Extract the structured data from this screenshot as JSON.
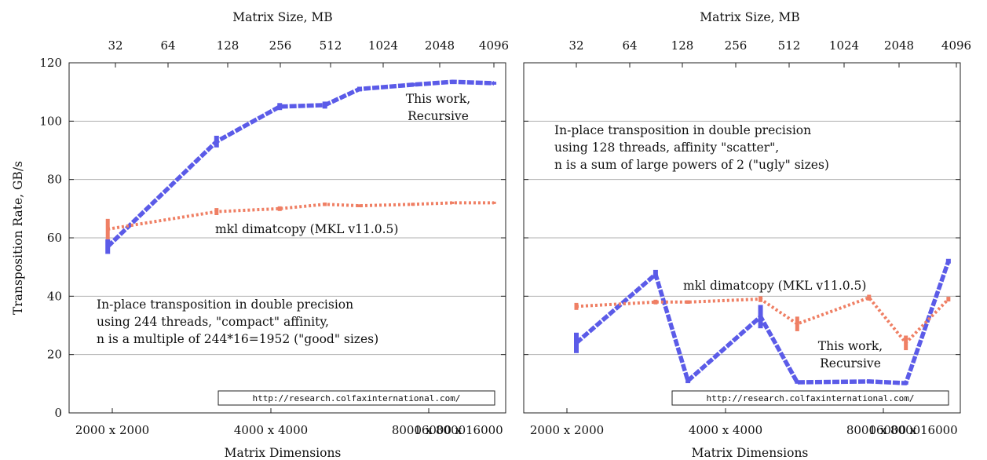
{
  "colors": {
    "blue": "#5b5be8",
    "orange": "#ef7f64",
    "grid": "#b0b0b0",
    "note_text": "#7a2e2e"
  },
  "figure": {
    "top_axis_title": "Matrix Size, MB",
    "bottom_axis_title": "Matrix Dimensions",
    "y_axis_title": "Transposition Rate, GB/s"
  },
  "chart_data": [
    {
      "type": "line",
      "xlabel": "Matrix Dimensions",
      "x2label": "Matrix Size, MB",
      "ylabel": "Transposition Rate, GB/s",
      "ylim": [
        0,
        120
      ],
      "yticks": [
        0,
        20,
        40,
        60,
        80,
        100,
        120
      ],
      "xticks_bottom": [
        "2000 x 2000",
        "4000 x 4000",
        "8000 x 8000",
        "16000 x 16000"
      ],
      "xticks_top": [
        "32",
        "64",
        "128",
        "256",
        "512",
        "1024",
        "2048",
        "4096"
      ],
      "grid": true,
      "annotation": [
        "In-place transposition in double precision",
        "using 244 threads, \"compact\" affinity,",
        "n is a multiple of 244*16=1952 (\"good\" sizes)"
      ],
      "url": "http://research.colfaxinternational.com/",
      "series": [
        {
          "name": "This work, Recursive",
          "label_lines": [
            "This work,",
            "Recursive"
          ],
          "color": "#5b5be8",
          "style": "dashed",
          "points": [
            {
              "matrix_size_mb": 29,
              "rate_gbs": 57,
              "err": 2.5
            },
            {
              "matrix_size_mb": 117,
              "rate_gbs": 93,
              "err": 2
            },
            {
              "matrix_size_mb": 263,
              "rate_gbs": 105,
              "err": 1.2
            },
            {
              "matrix_size_mb": 469,
              "rate_gbs": 105.5,
              "err": 1.2
            },
            {
              "matrix_size_mb": 732,
              "rate_gbs": 111,
              "err": 0.8
            },
            {
              "matrix_size_mb": 1450,
              "rate_gbs": 112.5,
              "err": 0.6
            },
            {
              "matrix_size_mb": 2400,
              "rate_gbs": 113.5,
              "err": 0.5
            },
            {
              "matrix_size_mb": 4100,
              "rate_gbs": 113,
              "err": 0.5
            }
          ]
        },
        {
          "name": "mkl dimatcopy (MKL v11.0.5)",
          "label_lines": [
            "mkl dimatcopy (MKL v11.0.5)"
          ],
          "color": "#ef7f64",
          "style": "dotted",
          "points": [
            {
              "matrix_size_mb": 29,
              "rate_gbs": 63,
              "err": 3.5
            },
            {
              "matrix_size_mb": 117,
              "rate_gbs": 69,
              "err": 1.2
            },
            {
              "matrix_size_mb": 263,
              "rate_gbs": 70,
              "err": 0.8
            },
            {
              "matrix_size_mb": 469,
              "rate_gbs": 71.5,
              "err": 0.6
            },
            {
              "matrix_size_mb": 732,
              "rate_gbs": 71,
              "err": 0.5
            },
            {
              "matrix_size_mb": 1450,
              "rate_gbs": 71.5,
              "err": 0.5
            },
            {
              "matrix_size_mb": 2400,
              "rate_gbs": 72,
              "err": 0.4
            },
            {
              "matrix_size_mb": 4100,
              "rate_gbs": 72,
              "err": 0.4
            }
          ]
        }
      ]
    },
    {
      "type": "line",
      "xlabel": "Matrix Dimensions",
      "x2label": "Matrix Size, MB",
      "ylabel": "",
      "ylim": [
        0,
        120
      ],
      "yticks": [
        0,
        20,
        40,
        60,
        80,
        100,
        120
      ],
      "xticks_bottom": [
        "2000 x 2000",
        "4000 x 4000",
        "8000 x 8000",
        "16000 x 16000"
      ],
      "xticks_top": [
        "32",
        "64",
        "128",
        "256",
        "512",
        "1024",
        "2048",
        "4096"
      ],
      "grid": true,
      "annotation": [
        "In-place transposition in double precision",
        "using 128 threads, affinity \"scatter\",",
        "n is a sum of large powers of 2 (\"ugly\" sizes)"
      ],
      "url": "http://research.colfaxinternational.com/",
      "series": [
        {
          "name": "This work, Recursive",
          "label_lines": [
            "This work,",
            "Recursive"
          ],
          "color": "#5b5be8",
          "style": "dashed",
          "points": [
            {
              "matrix_size_mb": 32,
              "rate_gbs": 24,
              "err": 3.5
            },
            {
              "matrix_size_mb": 88,
              "rate_gbs": 47.5,
              "err": 1.5
            },
            {
              "matrix_size_mb": 133,
              "rate_gbs": 11,
              "err": 0.8
            },
            {
              "matrix_size_mb": 336,
              "rate_gbs": 33,
              "err": 4
            },
            {
              "matrix_size_mb": 537,
              "rate_gbs": 10.5,
              "err": 0.5
            },
            {
              "matrix_size_mb": 1343,
              "rate_gbs": 10.8,
              "err": 0.5
            },
            {
              "matrix_size_mb": 2149,
              "rate_gbs": 10.2,
              "err": 0.5
            },
            {
              "matrix_size_mb": 3700,
              "rate_gbs": 52,
              "err": 0.8
            }
          ]
        },
        {
          "name": "mkl dimatcopy (MKL v11.0.5)",
          "label_lines": [
            "mkl dimatcopy (MKL v11.0.5)"
          ],
          "color": "#ef7f64",
          "style": "dotted",
          "points": [
            {
              "matrix_size_mb": 32,
              "rate_gbs": 36.5,
              "err": 1.2
            },
            {
              "matrix_size_mb": 88,
              "rate_gbs": 38,
              "err": 0.8
            },
            {
              "matrix_size_mb": 133,
              "rate_gbs": 38,
              "err": 0.6
            },
            {
              "matrix_size_mb": 336,
              "rate_gbs": 39,
              "err": 1
            },
            {
              "matrix_size_mb": 537,
              "rate_gbs": 30.5,
              "err": 2.5
            },
            {
              "matrix_size_mb": 1343,
              "rate_gbs": 39.5,
              "err": 1
            },
            {
              "matrix_size_mb": 2149,
              "rate_gbs": 24,
              "err": 2.5
            },
            {
              "matrix_size_mb": 3700,
              "rate_gbs": 39,
              "err": 0.8
            }
          ]
        }
      ]
    }
  ]
}
